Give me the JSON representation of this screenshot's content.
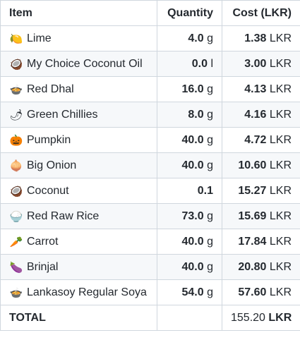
{
  "table": {
    "headers": {
      "item": "Item",
      "quantity": "Quantity",
      "cost": "Cost (LKR)"
    },
    "rows": [
      {
        "icon": "lemon-icon",
        "glyph": "🍋",
        "item": "Lime",
        "qty_value": "4.0",
        "qty_unit": "g",
        "cost_value": "1.38",
        "cost_unit": "LKR"
      },
      {
        "icon": "coconut-icon",
        "glyph": "🥥",
        "item": "My Choice Coconut Oil",
        "qty_value": "0.0",
        "qty_unit": "l",
        "cost_value": "3.00",
        "cost_unit": "LKR"
      },
      {
        "icon": "pot-of-food-icon",
        "glyph": "🍲",
        "item": "Red Dhal",
        "qty_value": "16.0",
        "qty_unit": "g",
        "cost_value": "4.13",
        "cost_unit": "LKR"
      },
      {
        "icon": "chili-pepper-icon",
        "glyph": "🌶",
        "item": "Green Chillies",
        "qty_value": "8.0",
        "qty_unit": "g",
        "cost_value": "4.16",
        "cost_unit": "LKR"
      },
      {
        "icon": "pumpkin-icon",
        "glyph": "🎃",
        "item": "Pumpkin",
        "qty_value": "40.0",
        "qty_unit": "g",
        "cost_value": "4.72",
        "cost_unit": "LKR"
      },
      {
        "icon": "onion-icon",
        "glyph": "🧅",
        "item": "Big Onion",
        "qty_value": "40.0",
        "qty_unit": "g",
        "cost_value": "10.60",
        "cost_unit": "LKR"
      },
      {
        "icon": "coconut-icon",
        "glyph": "🥥",
        "item": "Coconut",
        "qty_value": "0.1",
        "qty_unit": "",
        "cost_value": "15.27",
        "cost_unit": "LKR"
      },
      {
        "icon": "rice-bowl-icon",
        "glyph": "🍚",
        "item": "Red Raw Rice",
        "qty_value": "73.0",
        "qty_unit": "g",
        "cost_value": "15.69",
        "cost_unit": "LKR"
      },
      {
        "icon": "carrot-icon",
        "glyph": "🥕",
        "item": "Carrot",
        "qty_value": "40.0",
        "qty_unit": "g",
        "cost_value": "17.84",
        "cost_unit": "LKR"
      },
      {
        "icon": "eggplant-icon",
        "glyph": "🍆",
        "item": "Brinjal",
        "qty_value": "40.0",
        "qty_unit": "g",
        "cost_value": "20.80",
        "cost_unit": "LKR"
      },
      {
        "icon": "pot-of-food-icon",
        "glyph": "🍲",
        "item": "Lankasoy Regular Soya",
        "qty_value": "54.0",
        "qty_unit": "g",
        "cost_value": "57.60",
        "cost_unit": "LKR"
      }
    ],
    "total": {
      "label": "TOTAL",
      "qty": "",
      "cost_value": "155.20",
      "cost_unit": "LKR"
    }
  }
}
